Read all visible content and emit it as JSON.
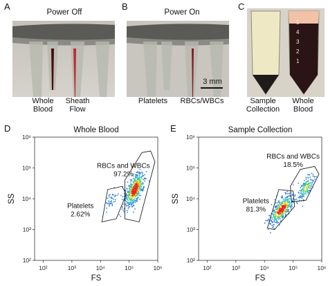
{
  "figure": {
    "panels": {
      "A": {
        "letter": "A",
        "title": "Power Off",
        "labels": [
          "Whole",
          "Blood",
          "Sheath",
          "Flow"
        ]
      },
      "B": {
        "letter": "B",
        "title": "Power On",
        "labels": [
          "Platelets",
          "RBCs/WBCs"
        ],
        "scale_bar": "3 mm"
      },
      "C": {
        "letter": "C",
        "labels": [
          "Sample",
          "Collection",
          "Whole",
          "Blood"
        ],
        "tube_marks": [
          "5",
          "4",
          "3",
          "2",
          "1"
        ]
      },
      "D": {
        "letter": "D"
      },
      "E": {
        "letter": "E"
      }
    }
  },
  "chart_data": [
    {
      "type": "scatter",
      "title": "Whole Blood",
      "xlabel": "FS",
      "ylabel": "SS",
      "xscale": "log",
      "yscale": "log",
      "xlim": [
        50,
        1000000
      ],
      "ylim": [
        100,
        1000000
      ],
      "xticks": [
        "10²",
        "10³",
        "10⁴",
        "10⁵",
        "10⁶"
      ],
      "yticks": [
        "10²",
        "10³",
        "10⁴",
        "10⁵",
        "10⁶"
      ],
      "gates": [
        {
          "name": "RBCs and WBCs",
          "percent": "97.2%"
        },
        {
          "name": "Platelets",
          "percent": "2.62%"
        }
      ]
    },
    {
      "type": "scatter",
      "title": "Sample Collection",
      "xlabel": "FS",
      "ylabel": "SS",
      "xscale": "log",
      "yscale": "log",
      "xlim": [
        50,
        1000000
      ],
      "ylim": [
        100,
        1000000
      ],
      "xticks": [
        "10²",
        "10³",
        "10⁴",
        "10⁵",
        "10⁶"
      ],
      "yticks": [
        "10²",
        "10³",
        "10⁴",
        "10⁵",
        "10⁶"
      ],
      "gates": [
        {
          "name": "RBCs and WBCs",
          "percent": "18.5%"
        },
        {
          "name": "Platelets",
          "percent": "81.3%"
        }
      ]
    }
  ]
}
